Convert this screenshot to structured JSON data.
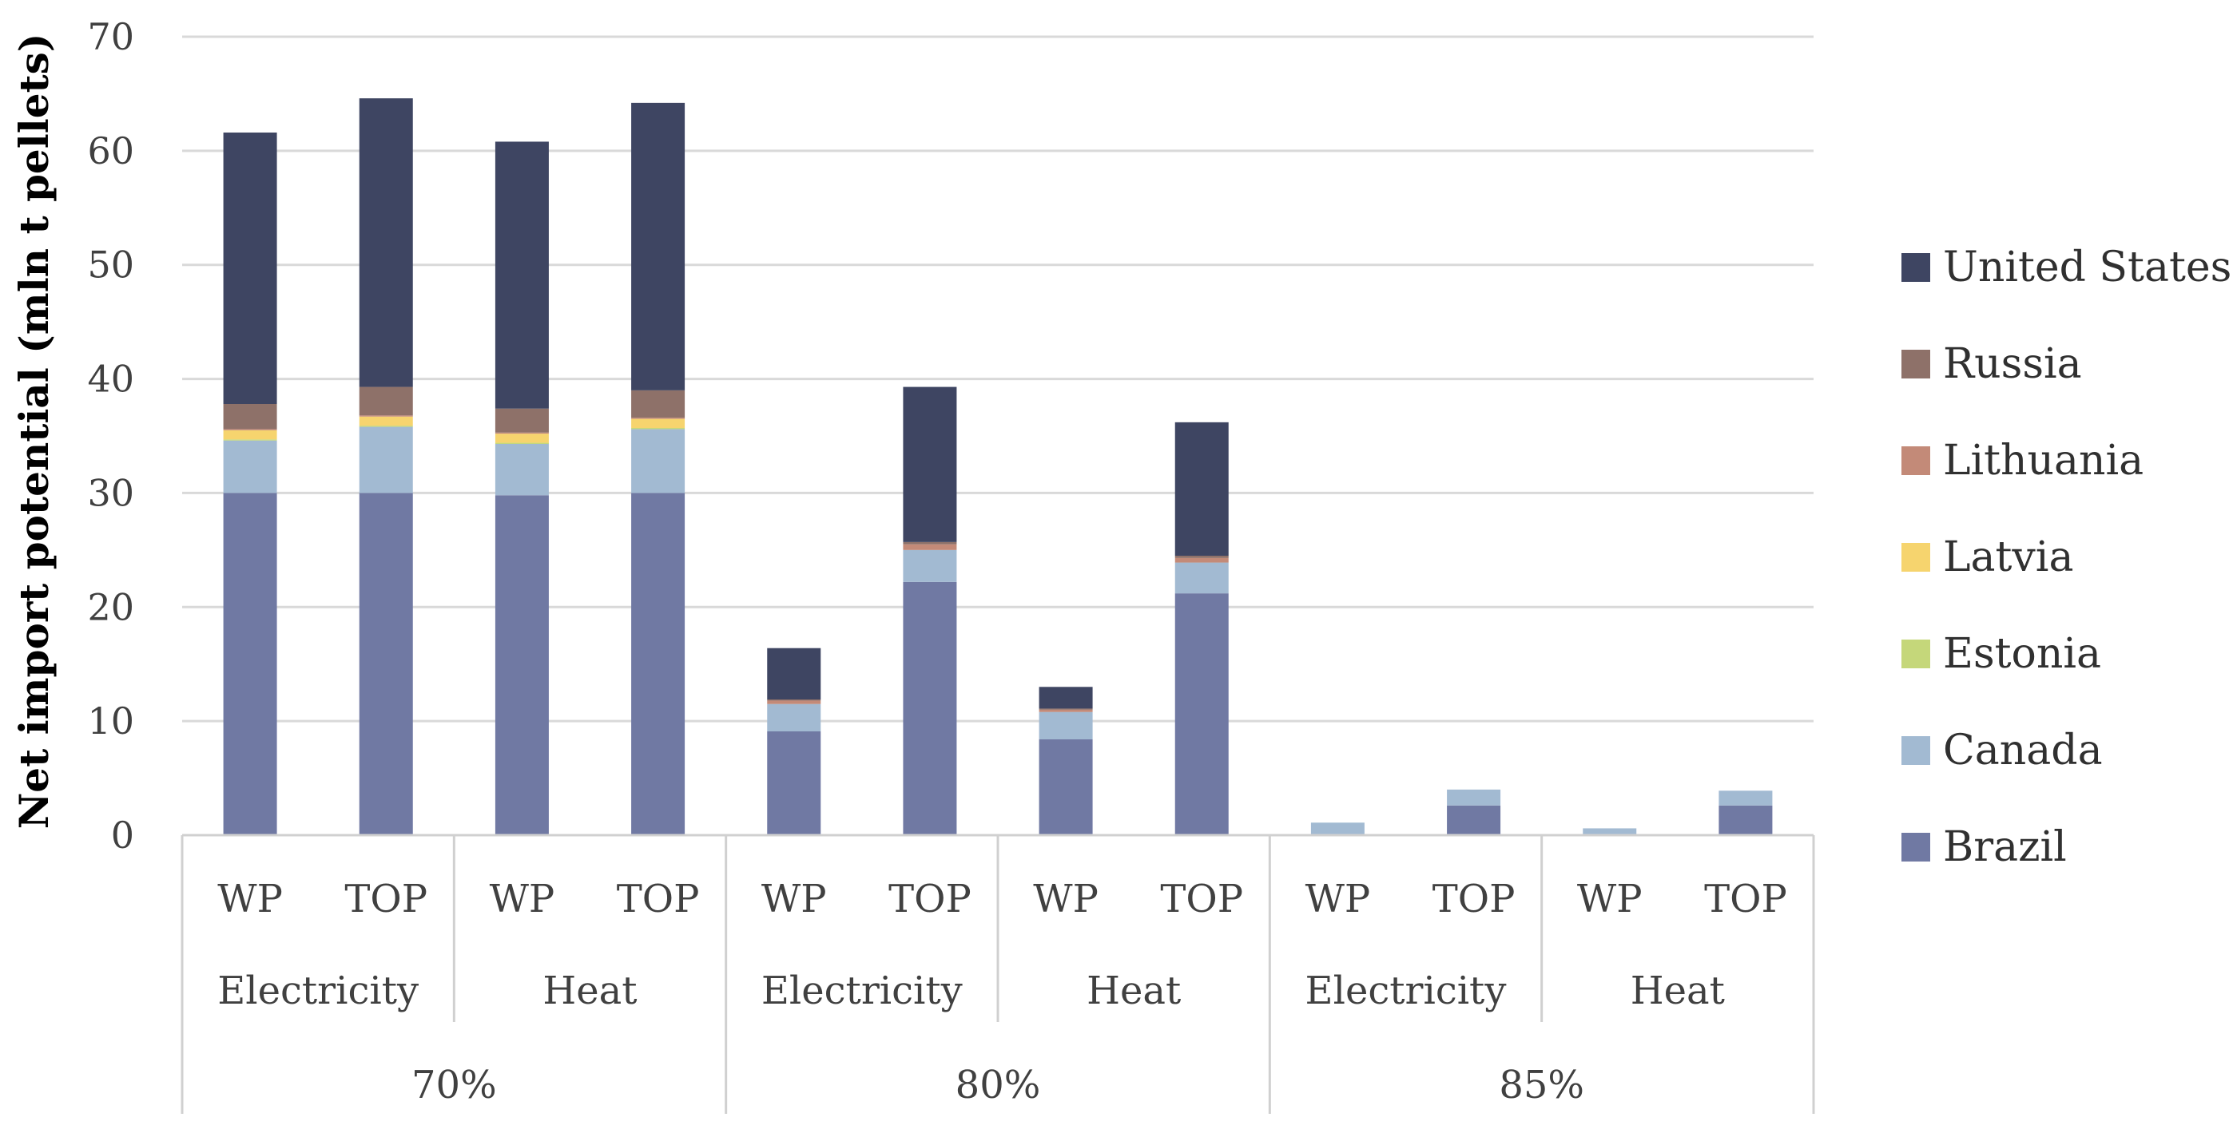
{
  "chart_data": {
    "type": "bar",
    "stacked": true,
    "title": "",
    "xlabel": "",
    "ylabel": "Net import potential (mln t pellets)",
    "ylim": [
      0,
      70
    ],
    "yticks": [
      0,
      10,
      20,
      30,
      40,
      50,
      60,
      70
    ],
    "grid": true,
    "legend_position": "right",
    "categories": [
      "WP",
      "TOP",
      "WP",
      "TOP",
      "WP",
      "TOP",
      "WP",
      "TOP",
      "WP",
      "TOP",
      "WP",
      "TOP"
    ],
    "category_groups": [
      {
        "label": "Electricity",
        "span": 2
      },
      {
        "label": "Heat",
        "span": 2
      },
      {
        "label": "Electricity",
        "span": 2
      },
      {
        "label": "Heat",
        "span": 2
      },
      {
        "label": "Electricity",
        "span": 2
      },
      {
        "label": "Heat",
        "span": 2
      }
    ],
    "category_supergroups": [
      {
        "label": "70%",
        "span": 4
      },
      {
        "label": "80%",
        "span": 4
      },
      {
        "label": "85%",
        "span": 4
      }
    ],
    "series": [
      {
        "name": "Brazil",
        "color": "#7079a3",
        "values": [
          30,
          30,
          29.8,
          30,
          9.1,
          22.2,
          8.4,
          21.2,
          0,
          2.6,
          0,
          2.6
        ]
      },
      {
        "name": "Canada",
        "color": "#a2bad2",
        "values": [
          4.6,
          5.8,
          4.5,
          5.6,
          2.4,
          2.8,
          2.4,
          2.7,
          1.1,
          1.4,
          0.6,
          1.3
        ]
      },
      {
        "name": "Estonia",
        "color": "#c5d77a",
        "values": [
          0.1,
          0.1,
          0.1,
          0.1,
          0,
          0,
          0,
          0,
          0,
          0,
          0,
          0
        ]
      },
      {
        "name": "Latvia",
        "color": "#f6d46e",
        "values": [
          0.8,
          0.8,
          0.8,
          0.8,
          0,
          0,
          0,
          0,
          0,
          0,
          0,
          0
        ]
      },
      {
        "name": "Lithuania",
        "color": "#c38a78",
        "values": [
          0.1,
          0.1,
          0.1,
          0.1,
          0.3,
          0.5,
          0.2,
          0.4,
          0,
          0,
          0,
          0
        ]
      },
      {
        "name": "Russia",
        "color": "#8e7169",
        "values": [
          2.2,
          2.5,
          2.1,
          2.4,
          0.1,
          0.2,
          0.1,
          0.2,
          0,
          0,
          0,
          0
        ]
      },
      {
        "name": "United States",
        "color": "#3e4562",
        "values": [
          23.8,
          25.3,
          23.4,
          25.2,
          4.5,
          13.6,
          1.9,
          11.7,
          0,
          0,
          0,
          0
        ]
      }
    ]
  }
}
